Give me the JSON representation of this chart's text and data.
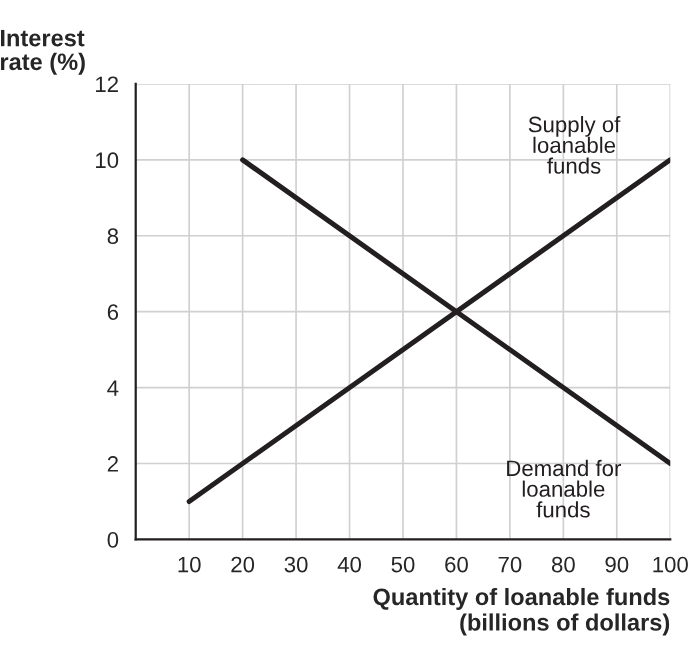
{
  "chart_data": {
    "type": "line",
    "xlabel": "Quantity of loanable funds\n(billions of dollars)",
    "ylabel": "Interest\nrate (%)",
    "series": [
      {
        "name": "Supply of\nloanable\nfunds",
        "color": "#231f20",
        "x": [
          10,
          100
        ],
        "values": [
          1,
          10
        ]
      },
      {
        "name": "Demand for\nloanable\nfunds",
        "color": "#231f20",
        "x": [
          20,
          100
        ],
        "values": [
          10,
          2
        ]
      }
    ],
    "xlim": [
      0,
      100
    ],
    "ylim": [
      0,
      12
    ],
    "xticks": [
      10,
      20,
      30,
      40,
      50,
      60,
      70,
      80,
      90,
      100
    ],
    "yticks": [
      0,
      2,
      4,
      6,
      8,
      10,
      12
    ],
    "grid": true,
    "legend": false,
    "marker": "none",
    "line_style": "solid"
  }
}
